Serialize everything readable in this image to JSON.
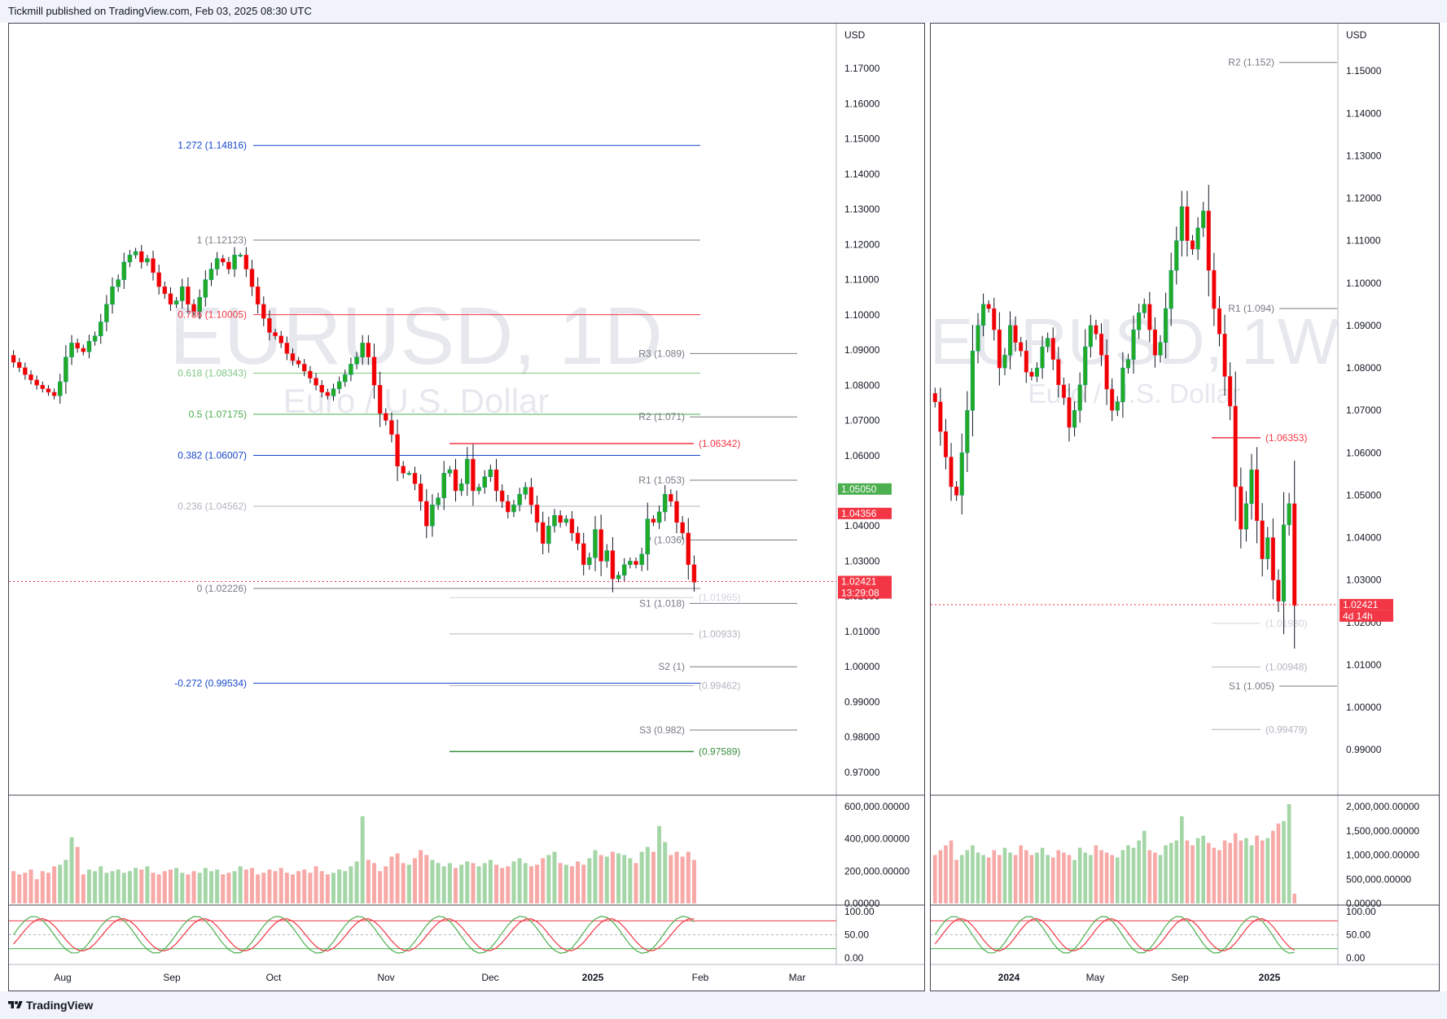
{
  "header": {
    "published": "Tickmill published on TradingView.com, Feb 03, 2025 08:30 UTC"
  },
  "footer": {
    "brand": "TradingView"
  },
  "chart_data": [
    {
      "type": "candlestick",
      "symbol": "EURUSD, 1D",
      "description": "Euro / U.S. Dollar",
      "currency": "USD",
      "price_ticks": [
        "1.17000",
        "1.16000",
        "1.15000",
        "1.14000",
        "1.13000",
        "1.12000",
        "1.11000",
        "1.10000",
        "1.09000",
        "1.08000",
        "1.07000",
        "1.06000",
        "1.05000",
        "1.04000",
        "1.03000",
        "1.02000",
        "1.01000",
        "1.00000",
        "0.99000",
        "0.98000",
        "0.97000"
      ],
      "ylim": [
        0.9635,
        1.1786
      ],
      "x_ticks": [
        "Aug",
        "Sep",
        "Oct",
        "Nov",
        "Dec",
        "2025",
        "Feb",
        "Mar"
      ],
      "fib_levels": [
        {
          "label": "1.272 (1.14816)",
          "value": 1.14816,
          "color": "#1848cc"
        },
        {
          "label": "1 (1.12123)",
          "value": 1.12123,
          "color": "#787b86"
        },
        {
          "label": "0.786 (1.10005)",
          "value": 1.10005,
          "color": "#f23645"
        },
        {
          "label": "0.618 (1.08343)",
          "value": 1.08343,
          "color": "#81c784"
        },
        {
          "label": "0.5 (1.07175)",
          "value": 1.07175,
          "color": "#4caf50"
        },
        {
          "label": "0.382 (1.06007)",
          "value": 1.06007,
          "color": "#1848cc"
        },
        {
          "label": "0.236 (1.04562)",
          "value": 1.04562,
          "color": "#b2b5be"
        },
        {
          "label": "0 (1.02226)",
          "value": 1.02226,
          "color": "#787b86"
        },
        {
          "label": "-0.272 (0.99534)",
          "value": 0.99534,
          "color": "#1848cc"
        }
      ],
      "pivots": [
        {
          "label": "R3 (1.089)",
          "value": 1.089
        },
        {
          "label": "R2 (1.071)",
          "value": 1.071
        },
        {
          "label": "R1 (1.053)",
          "value": 1.053
        },
        {
          "label": "P (1.036)",
          "value": 1.036
        },
        {
          "label": "S1 (1.018)",
          "value": 1.018
        },
        {
          "label": "S2 (1)",
          "value": 1.0
        },
        {
          "label": "S3 (0.982)",
          "value": 0.982
        }
      ],
      "levels": [
        {
          "label": "(1.06342)",
          "value": 1.06342,
          "color": "#f23645"
        },
        {
          "label": "(1.01965)",
          "value": 1.01965,
          "color": "#d1d4dc"
        },
        {
          "label": "(1.00933)",
          "value": 1.00933,
          "color": "#b2b5be"
        },
        {
          "label": "(0.99462)",
          "value": 0.99462,
          "color": "#b2b5be"
        },
        {
          "label": "(0.97589)",
          "value": 0.97589,
          "color": "#388e3c"
        }
      ],
      "price_tags": [
        {
          "text": "1.05050",
          "value": 1.0505,
          "color": "#4caf50"
        },
        {
          "text": "1.04356",
          "value": 1.04356,
          "color": "#f23645"
        },
        {
          "text": "1.02421",
          "value": 1.02421,
          "color": "#f23645"
        },
        {
          "text": "13:29:08",
          "value": 1.02421,
          "color": "#f23645"
        }
      ],
      "last_price": 1.02421,
      "volume_axis": [
        "600,000.00000",
        "400,000.00000",
        "200,000.00000",
        "0.00000"
      ],
      "volume_max": 600000,
      "osc_axis": [
        "100.00",
        "50.00",
        "0.00"
      ],
      "closes": [
        1.0865,
        1.085,
        1.083,
        1.0815,
        1.08,
        1.079,
        1.078,
        1.077,
        1.081,
        1.088,
        1.092,
        1.0905,
        1.0895,
        1.0925,
        1.094,
        1.098,
        1.103,
        1.108,
        1.11,
        1.115,
        1.117,
        1.118,
        1.115,
        1.116,
        1.112,
        1.108,
        1.106,
        1.103,
        1.104,
        1.108,
        1.103,
        1.101,
        1.105,
        1.11,
        1.113,
        1.116,
        1.115,
        1.113,
        1.117,
        1.117,
        1.113,
        1.108,
        1.103,
        1.099,
        1.095,
        1.094,
        1.092,
        1.089,
        1.087,
        1.086,
        1.084,
        1.082,
        1.08,
        1.078,
        1.077,
        1.079,
        1.081,
        1.083,
        1.086,
        1.088,
        1.092,
        1.088,
        1.08,
        1.072,
        1.07,
        1.066,
        1.057,
        1.055,
        1.055,
        1.052,
        1.047,
        1.04,
        1.046,
        1.048,
        1.055,
        1.056,
        1.05,
        1.052,
        1.059,
        1.05,
        1.051,
        1.054,
        1.056,
        1.05,
        1.047,
        1.044,
        1.046,
        1.049,
        1.051,
        1.046,
        1.041,
        1.035,
        1.04,
        1.043,
        1.041,
        1.042,
        1.038,
        1.035,
        1.029,
        1.031,
        1.039,
        1.03,
        1.033,
        1.025,
        1.026,
        1.029,
        1.03,
        1.029,
        1.032,
        1.042,
        1.041,
        1.044,
        1.049,
        1.047,
        1.041,
        1.038,
        1.029,
        1.024
      ],
      "volumes": [
        200000,
        180000,
        190000,
        210000,
        150000,
        200000,
        190000,
        230000,
        240000,
        270000,
        410000,
        350000,
        180000,
        210000,
        200000,
        230000,
        190000,
        200000,
        210000,
        190000,
        200000,
        220000,
        210000,
        230000,
        190000,
        180000,
        200000,
        210000,
        220000,
        190000,
        180000,
        200000,
        190000,
        220000,
        200000,
        210000,
        180000,
        190000,
        200000,
        230000,
        210000,
        220000,
        180000,
        190000,
        210000,
        200000,
        220000,
        190000,
        180000,
        200000,
        210000,
        190000,
        230000,
        200000,
        180000,
        190000,
        210000,
        200000,
        230000,
        260000,
        540000,
        270000,
        250000,
        200000,
        230000,
        290000,
        310000,
        250000,
        240000,
        280000,
        330000,
        300000,
        270000,
        250000,
        230000,
        250000,
        220000,
        240000,
        260000,
        250000,
        230000,
        250000,
        270000,
        240000,
        220000,
        230000,
        260000,
        280000,
        250000,
        230000,
        240000,
        280000,
        300000,
        320000,
        250000,
        240000,
        230000,
        260000,
        240000,
        280000,
        330000,
        300000,
        290000,
        320000,
        310000,
        300000,
        280000,
        250000,
        320000,
        350000,
        320000,
        480000,
        380000,
        300000,
        320000,
        290000,
        320000,
        270000
      ]
    },
    {
      "type": "candlestick",
      "symbol": "EURUSD, 1W",
      "description": "Euro / U.S. Dollar",
      "currency": "USD",
      "price_ticks": [
        "1.15000",
        "1.14000",
        "1.13000",
        "1.12000",
        "1.11000",
        "1.10000",
        "1.09000",
        "1.08000",
        "1.07000",
        "1.06000",
        "1.05000",
        "1.04000",
        "1.03000",
        "1.02000",
        "1.01000",
        "1.00000",
        "0.99000"
      ],
      "ylim": [
        0.9793,
        1.1577
      ],
      "x_ticks": [
        "2024",
        "May",
        "Sep",
        "2025"
      ],
      "pivots": [
        {
          "label": "R2 (1.152)",
          "value": 1.152
        },
        {
          "label": "R1 (1.094)",
          "value": 1.094
        },
        {
          "label": "S1 (1.005)",
          "value": 1.005
        }
      ],
      "levels": [
        {
          "label": "(1.06353)",
          "value": 1.06353,
          "color": "#f23645"
        },
        {
          "label": "(1.01980)",
          "value": 1.0198,
          "color": "#d1d4dc"
        },
        {
          "label": "(1.00948)",
          "value": 1.00948,
          "color": "#b2b5be"
        },
        {
          "label": "(0.99479)",
          "value": 0.99479,
          "color": "#b2b5be"
        }
      ],
      "price_tags": [
        {
          "text": "1.02421",
          "value": 1.02421,
          "color": "#f23645"
        },
        {
          "text": "4d 14h",
          "value": 1.02421,
          "color": "#f23645"
        }
      ],
      "last_price": 1.02421,
      "volume_axis": [
        "2,000,000.00000",
        "1,500,000.00000",
        "1,000,000.00000",
        "500,000.00000",
        "0.00000"
      ],
      "volume_max": 2000000,
      "osc_axis": [
        "100.00",
        "50.00",
        "0.00"
      ],
      "closes": [
        1.072,
        1.065,
        1.059,
        1.052,
        1.05,
        1.06,
        1.07,
        1.084,
        1.09,
        1.095,
        1.094,
        1.089,
        1.08,
        1.083,
        1.09,
        1.086,
        1.084,
        1.079,
        1.078,
        1.08,
        1.085,
        1.087,
        1.082,
        1.076,
        1.073,
        1.066,
        1.07,
        1.076,
        1.085,
        1.09,
        1.088,
        1.083,
        1.075,
        1.07,
        1.072,
        1.08,
        1.082,
        1.089,
        1.093,
        1.095,
        1.089,
        1.083,
        1.086,
        1.094,
        1.103,
        1.11,
        1.118,
        1.11,
        1.108,
        1.113,
        1.117,
        1.103,
        1.094,
        1.088,
        1.078,
        1.071,
        1.052,
        1.042,
        1.048,
        1.056,
        1.044,
        1.035,
        1.04,
        1.03,
        1.025,
        1.043,
        1.048,
        1.024
      ],
      "volumes": [
        1000000,
        1100000,
        1200000,
        1300000,
        900000,
        1000000,
        1100000,
        1200000,
        1050000,
        1000000,
        950000,
        1100000,
        1000000,
        1150000,
        1050000,
        1000000,
        1200000,
        1100000,
        1000000,
        1050000,
        1150000,
        1000000,
        950000,
        1100000,
        1050000,
        1000000,
        900000,
        1150000,
        1050000,
        1000000,
        1200000,
        1100000,
        1050000,
        1000000,
        950000,
        1100000,
        1200000,
        1150000,
        1300000,
        1500000,
        1100000,
        1050000,
        1000000,
        1200000,
        1250000,
        1300000,
        1800000,
        1300000,
        1200000,
        1350000,
        1400000,
        1250000,
        1150000,
        1100000,
        1300000,
        1250000,
        1450000,
        1300000,
        1350000,
        1200000,
        1400000,
        1300000,
        1350000,
        1500000,
        1650000,
        1700000,
        2050000,
        200000
      ]
    }
  ]
}
